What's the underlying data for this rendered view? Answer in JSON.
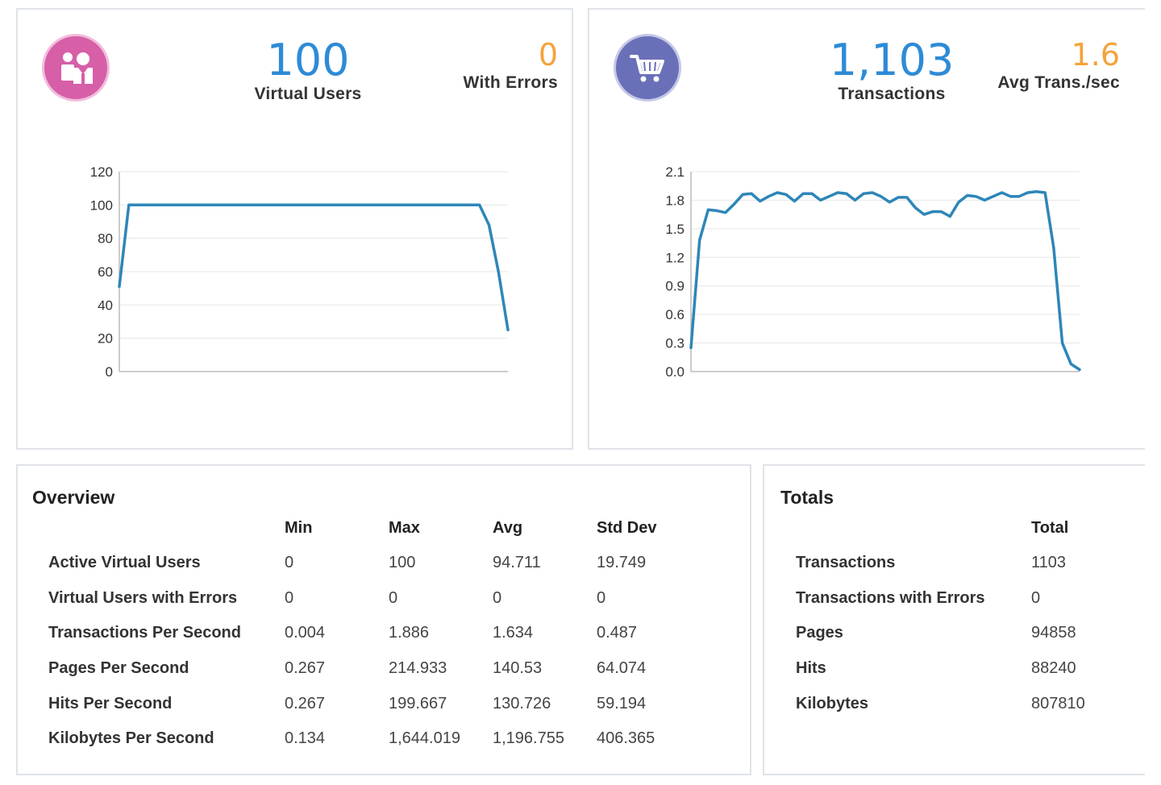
{
  "colors": {
    "blue": "#2e8bd6",
    "orange": "#f5a33a",
    "line": "#2e86b8",
    "users_icon_bg": "#d65fa8",
    "trans_icon_bg": "#6a70b8"
  },
  "users_panel": {
    "icon": "users-icon",
    "virtual_users_value": "100",
    "virtual_users_label": "Virtual Users",
    "errors_value": "0",
    "errors_label": "With Errors"
  },
  "transactions_panel": {
    "icon": "shopping-cart-icon",
    "transactions_value": "1,103",
    "transactions_label": "Transactions",
    "avg_value": "1.6",
    "avg_label": "Avg Trans./sec"
  },
  "chart_data": [
    {
      "type": "line",
      "title": "",
      "xlabel": "",
      "ylabel": "",
      "ylim": [
        0,
        120
      ],
      "yticks": [
        "0",
        "20",
        "40",
        "60",
        "80",
        "100",
        "120"
      ],
      "grid": true,
      "series": [
        {
          "values": [
            51,
            100,
            100,
            100,
            100,
            100,
            100,
            100,
            100,
            100,
            100,
            100,
            100,
            100,
            100,
            100,
            100,
            100,
            100,
            100,
            100,
            100,
            100,
            100,
            100,
            100,
            100,
            100,
            100,
            100,
            100,
            100,
            100,
            100,
            100,
            100,
            100,
            100,
            100,
            88,
            60,
            25
          ]
        }
      ]
    },
    {
      "type": "line",
      "title": "",
      "xlabel": "",
      "ylabel": "",
      "ylim": [
        0,
        2.1
      ],
      "yticks": [
        "0.0",
        "0.3",
        "0.6",
        "0.9",
        "1.2",
        "1.5",
        "1.8",
        "2.1"
      ],
      "grid": true,
      "series": [
        {
          "values": [
            0.25,
            1.38,
            1.7,
            1.69,
            1.67,
            1.76,
            1.86,
            1.87,
            1.79,
            1.84,
            1.88,
            1.86,
            1.79,
            1.87,
            1.87,
            1.8,
            1.84,
            1.88,
            1.87,
            1.8,
            1.87,
            1.88,
            1.84,
            1.78,
            1.83,
            1.83,
            1.72,
            1.65,
            1.68,
            1.68,
            1.63,
            1.78,
            1.85,
            1.84,
            1.8,
            1.84,
            1.88,
            1.84,
            1.84,
            1.88,
            1.89,
            1.88,
            1.3,
            0.3,
            0.08,
            0.02
          ]
        }
      ]
    }
  ],
  "overview": {
    "title": "Overview",
    "columns": [
      "Min",
      "Max",
      "Avg",
      "Std Dev"
    ],
    "rows": [
      {
        "label": "Active Virtual Users",
        "min": "0",
        "max": "100",
        "avg": "94.711",
        "std": "19.749"
      },
      {
        "label": "Virtual Users with Errors",
        "min": "0",
        "max": "0",
        "avg": "0",
        "std": "0"
      },
      {
        "label": "Transactions Per Second",
        "min": "0.004",
        "max": "1.886",
        "avg": "1.634",
        "std": "0.487"
      },
      {
        "label": "Pages Per Second",
        "min": "0.267",
        "max": "214.933",
        "avg": "140.53",
        "std": "64.074"
      },
      {
        "label": "Hits Per Second",
        "min": "0.267",
        "max": "199.667",
        "avg": "130.726",
        "std": "59.194"
      },
      {
        "label": "Kilobytes Per Second",
        "min": "0.134",
        "max": "1,644.019",
        "avg": "1,196.755",
        "std": "406.365"
      }
    ]
  },
  "totals": {
    "title": "Totals",
    "column": "Total",
    "rows": [
      {
        "label": "Transactions",
        "total": "1103"
      },
      {
        "label": "Transactions with Errors",
        "total": "0"
      },
      {
        "label": "Pages",
        "total": "94858"
      },
      {
        "label": "Hits",
        "total": "88240"
      },
      {
        "label": "Kilobytes",
        "total": "807810"
      }
    ]
  }
}
